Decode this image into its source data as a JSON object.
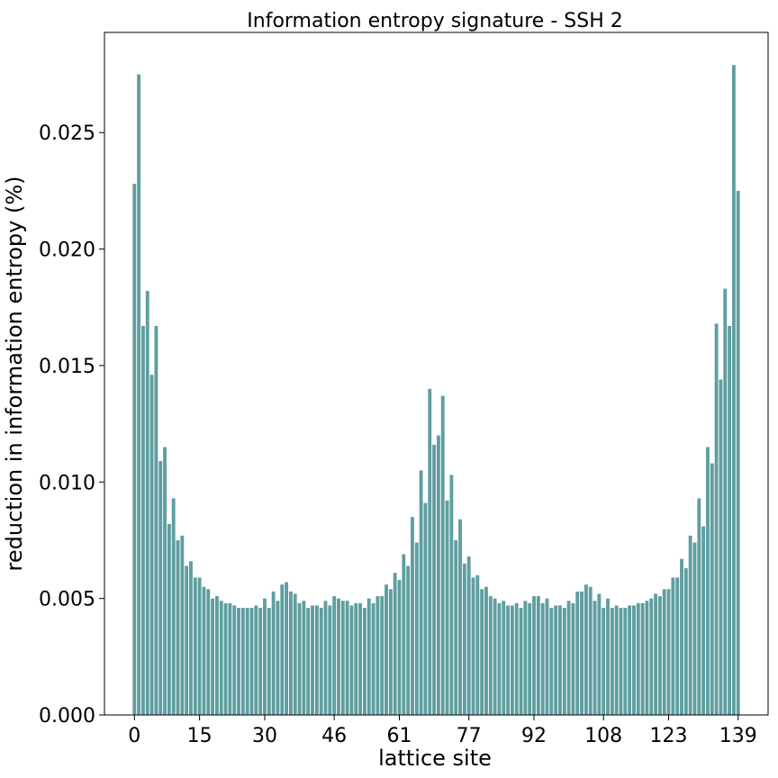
{
  "chart_data": {
    "type": "bar",
    "title": "Information entropy signature - SSH 2",
    "xlabel": "lattice site",
    "ylabel": "reduction in information entropy (%)",
    "bar_color": "#5f9ea0",
    "xlim": [
      -6.9,
      145.9
    ],
    "ylim": [
      0,
      0.0293
    ],
    "x_ticks": [
      0,
      15,
      30,
      46,
      61,
      77,
      92,
      108,
      123,
      139
    ],
    "y_ticks": [
      "0.000",
      "0.005",
      "0.010",
      "0.015",
      "0.020",
      "0.025"
    ],
    "grid": false,
    "x": [
      0,
      1,
      2,
      3,
      4,
      5,
      6,
      7,
      8,
      9,
      10,
      11,
      12,
      13,
      14,
      15,
      16,
      17,
      18,
      19,
      20,
      21,
      22,
      23,
      24,
      25,
      26,
      27,
      28,
      29,
      30,
      31,
      32,
      33,
      34,
      35,
      36,
      37,
      38,
      39,
      40,
      41,
      42,
      43,
      44,
      45,
      46,
      47,
      48,
      49,
      50,
      51,
      52,
      53,
      54,
      55,
      56,
      57,
      58,
      59,
      60,
      61,
      62,
      63,
      64,
      65,
      66,
      67,
      68,
      69,
      70,
      71,
      72,
      73,
      74,
      75,
      76,
      77,
      78,
      79,
      80,
      81,
      82,
      83,
      84,
      85,
      86,
      87,
      88,
      89,
      90,
      91,
      92,
      93,
      94,
      95,
      96,
      97,
      98,
      99,
      100,
      101,
      102,
      103,
      104,
      105,
      106,
      107,
      108,
      109,
      110,
      111,
      112,
      113,
      114,
      115,
      116,
      117,
      118,
      119,
      120,
      121,
      122,
      123,
      124,
      125,
      126,
      127,
      128,
      129,
      130,
      131,
      132,
      133,
      134,
      135,
      136,
      137,
      138,
      139
    ],
    "values": [
      0.0228,
      0.0275,
      0.0167,
      0.0182,
      0.0146,
      0.0167,
      0.0109,
      0.0115,
      0.0082,
      0.0093,
      0.0075,
      0.0077,
      0.0064,
      0.0066,
      0.0059,
      0.0059,
      0.0055,
      0.0054,
      0.005,
      0.0051,
      0.0049,
      0.0048,
      0.0048,
      0.0047,
      0.0046,
      0.0046,
      0.0046,
      0.0046,
      0.0047,
      0.0046,
      0.005,
      0.0046,
      0.0053,
      0.0049,
      0.0056,
      0.0057,
      0.0053,
      0.0052,
      0.0048,
      0.0049,
      0.0046,
      0.0047,
      0.0047,
      0.0046,
      0.0049,
      0.0047,
      0.0051,
      0.005,
      0.0049,
      0.0049,
      0.0047,
      0.0048,
      0.0048,
      0.0046,
      0.005,
      0.0048,
      0.0051,
      0.0051,
      0.0056,
      0.0054,
      0.0061,
      0.0058,
      0.0069,
      0.0064,
      0.0085,
      0.0074,
      0.0105,
      0.0091,
      0.014,
      0.0116,
      0.012,
      0.0137,
      0.0092,
      0.0103,
      0.0075,
      0.0084,
      0.0065,
      0.0068,
      0.0059,
      0.006,
      0.0054,
      0.0055,
      0.0051,
      0.005,
      0.0048,
      0.0049,
      0.0047,
      0.0047,
      0.0048,
      0.0046,
      0.0049,
      0.0048,
      0.0051,
      0.0051,
      0.0048,
      0.005,
      0.0046,
      0.0047,
      0.0047,
      0.0046,
      0.0049,
      0.0048,
      0.0053,
      0.0053,
      0.0056,
      0.0055,
      0.0049,
      0.0052,
      0.0046,
      0.005,
      0.0046,
      0.0047,
      0.0046,
      0.0046,
      0.0047,
      0.0047,
      0.0048,
      0.0048,
      0.0049,
      0.005,
      0.0052,
      0.0051,
      0.0054,
      0.0054,
      0.0059,
      0.0059,
      0.0067,
      0.0063,
      0.0077,
      0.0074,
      0.0093,
      0.0081,
      0.0115,
      0.0108,
      0.0168,
      0.0144,
      0.0183,
      0.0167,
      0.0279,
      0.0225
    ]
  }
}
